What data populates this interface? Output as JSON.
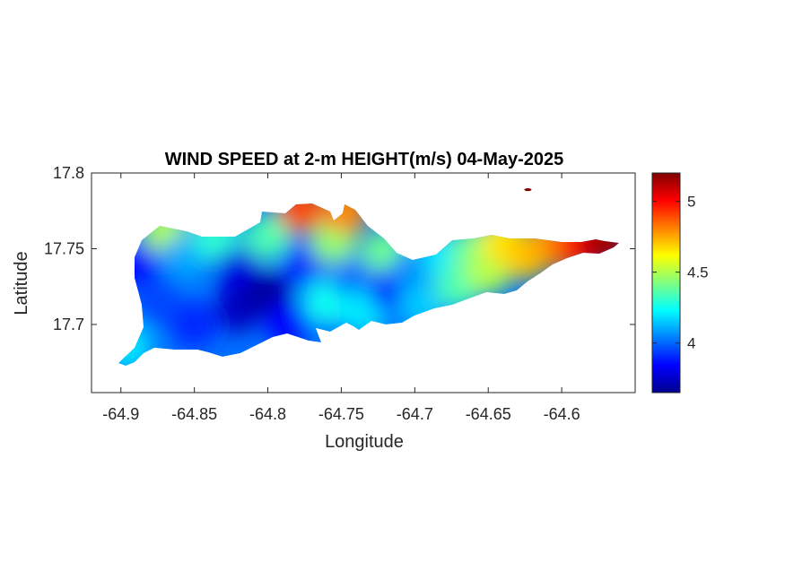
{
  "chart_data": {
    "type": "heatmap",
    "title": "WIND SPEED at 2-m HEIGHT(m/s) 04-May-2025",
    "xlabel": "Longitude",
    "ylabel": "Latitude",
    "xlim": [
      -64.92,
      -64.55
    ],
    "ylim": [
      17.655,
      17.8
    ],
    "x_ticks": [
      -64.9,
      -64.85,
      -64.8,
      -64.75,
      -64.7,
      -64.65,
      -64.6
    ],
    "x_tick_labels": [
      "-64.9",
      "-64.85",
      "-64.8",
      "-64.75",
      "-64.7",
      "-64.65",
      "-64.6"
    ],
    "y_ticks": [
      17.7,
      17.75,
      17.8
    ],
    "y_tick_labels": [
      "17.7",
      "17.75",
      "17.8"
    ],
    "colorbar": {
      "colormap": "jet",
      "clim": [
        3.65,
        5.2
      ],
      "ticks": [
        4,
        4.5,
        5
      ],
      "tick_labels": [
        "4",
        "4.5",
        "5"
      ]
    },
    "grid": false,
    "regions": [
      {
        "x": -64.895,
        "y": 17.685,
        "value": 4.2
      },
      {
        "x": -64.89,
        "y": 17.74,
        "value": 3.85
      },
      {
        "x": -64.875,
        "y": 17.715,
        "value": 3.95
      },
      {
        "x": -64.87,
        "y": 17.762,
        "value": 4.5
      },
      {
        "x": -64.855,
        "y": 17.745,
        "value": 4.1
      },
      {
        "x": -64.85,
        "y": 17.7,
        "value": 3.9
      },
      {
        "x": -64.835,
        "y": 17.757,
        "value": 4.3
      },
      {
        "x": -64.82,
        "y": 17.735,
        "value": 3.8
      },
      {
        "x": -64.82,
        "y": 17.71,
        "value": 3.75
      },
      {
        "x": -64.8,
        "y": 17.72,
        "value": 3.7
      },
      {
        "x": -64.8,
        "y": 17.758,
        "value": 4.35
      },
      {
        "x": -64.785,
        "y": 17.7,
        "value": 3.85
      },
      {
        "x": -64.778,
        "y": 17.776,
        "value": 4.9
      },
      {
        "x": -64.775,
        "y": 17.74,
        "value": 3.9
      },
      {
        "x": -64.76,
        "y": 17.715,
        "value": 4.25
      },
      {
        "x": -64.755,
        "y": 17.755,
        "value": 4.45
      },
      {
        "x": -64.747,
        "y": 17.775,
        "value": 4.8
      },
      {
        "x": -64.74,
        "y": 17.73,
        "value": 4.0
      },
      {
        "x": -64.735,
        "y": 17.708,
        "value": 4.2
      },
      {
        "x": -64.72,
        "y": 17.748,
        "value": 4.4
      },
      {
        "x": -64.715,
        "y": 17.722,
        "value": 3.9
      },
      {
        "x": -64.7,
        "y": 17.735,
        "value": 4.05
      },
      {
        "x": -64.695,
        "y": 17.712,
        "value": 4.15
      },
      {
        "x": -64.68,
        "y": 17.745,
        "value": 4.2
      },
      {
        "x": -64.67,
        "y": 17.725,
        "value": 4.35
      },
      {
        "x": -64.66,
        "y": 17.75,
        "value": 4.4
      },
      {
        "x": -64.65,
        "y": 17.735,
        "value": 4.5
      },
      {
        "x": -64.64,
        "y": 17.755,
        "value": 4.65
      },
      {
        "x": -64.625,
        "y": 17.745,
        "value": 4.7
      },
      {
        "x": -64.61,
        "y": 17.752,
        "value": 4.75
      },
      {
        "x": -64.595,
        "y": 17.752,
        "value": 4.85
      },
      {
        "x": -64.585,
        "y": 17.753,
        "value": 5.0
      },
      {
        "x": -64.57,
        "y": 17.754,
        "value": 5.15
      },
      {
        "x": -64.623,
        "y": 17.789,
        "value": 5.2
      }
    ]
  }
}
